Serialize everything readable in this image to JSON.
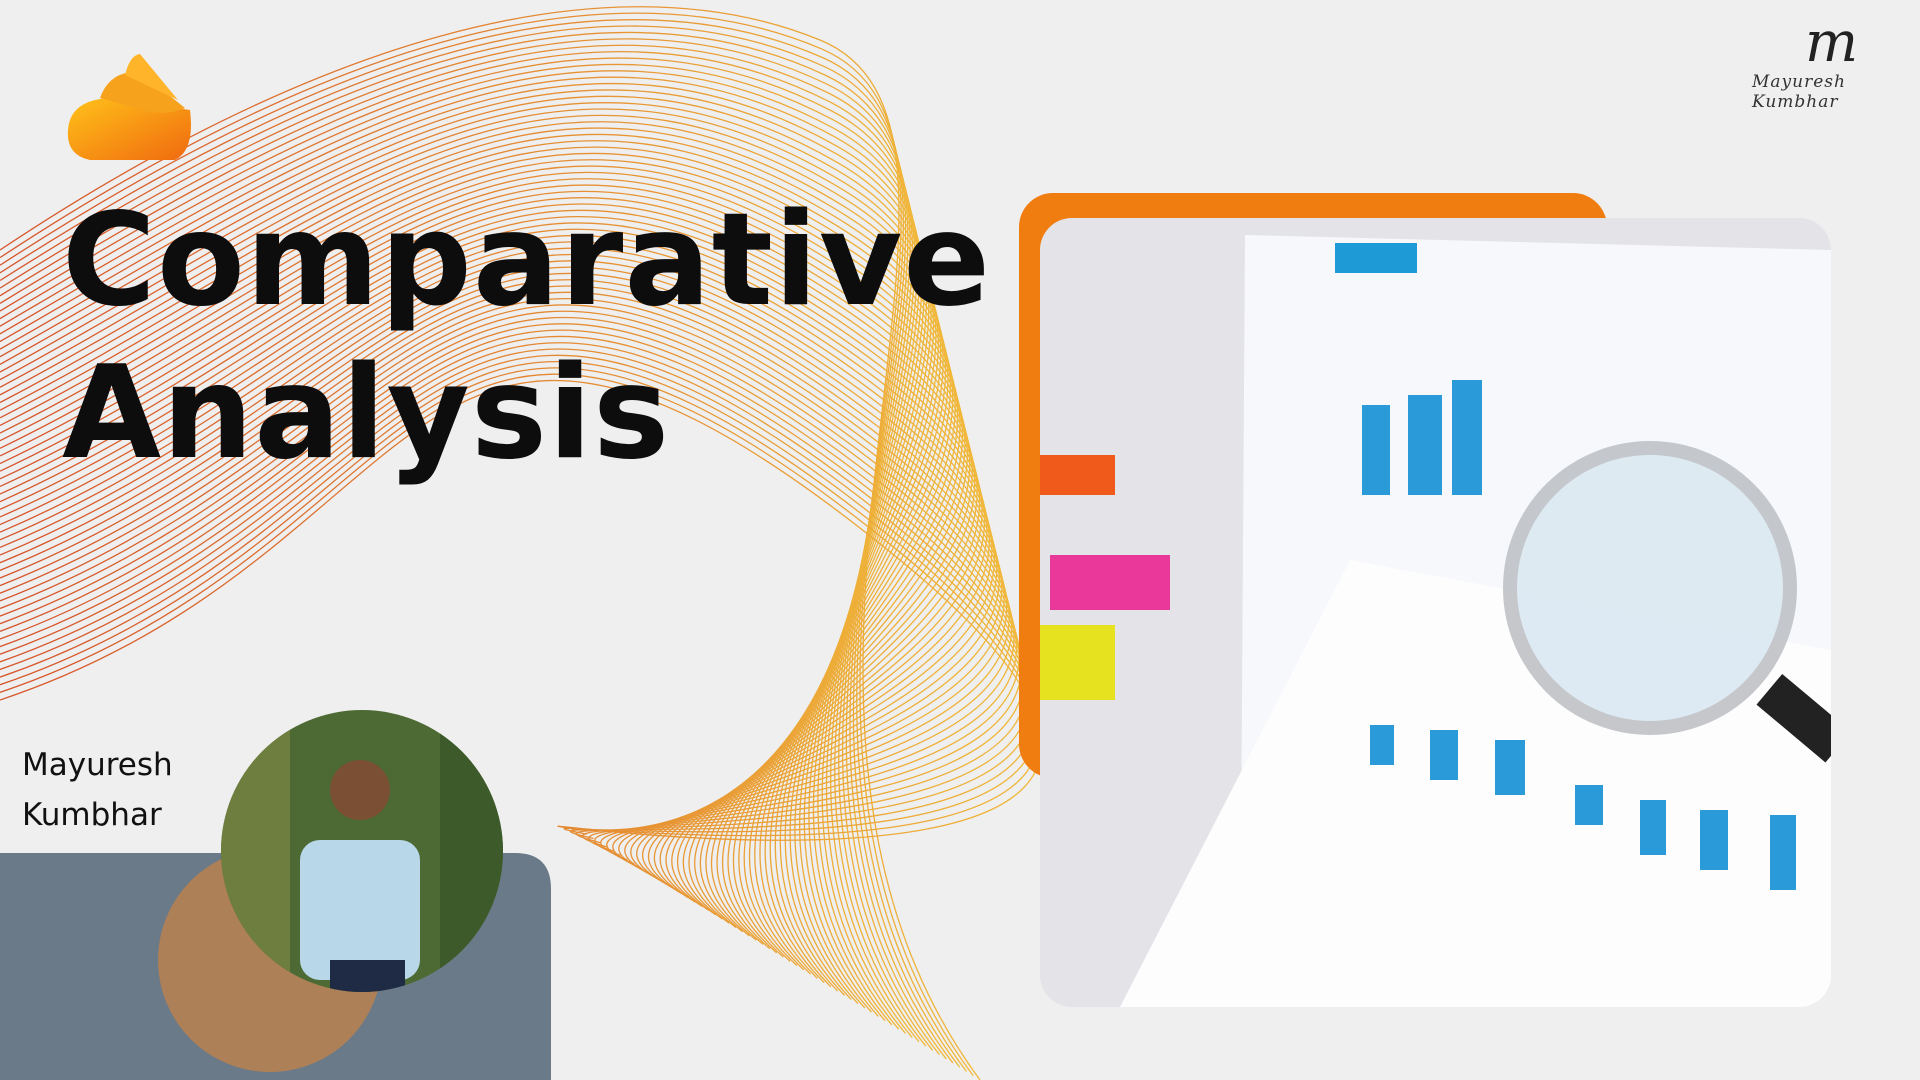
{
  "header": {
    "title_line1": "Comparative",
    "title_line2": "Analysis"
  },
  "author": {
    "name_line1": "Mayuresh",
    "name_line2": "Kumbhar"
  },
  "signature": {
    "initial": "m",
    "text": "Mayuresh Kumbhar"
  }
}
